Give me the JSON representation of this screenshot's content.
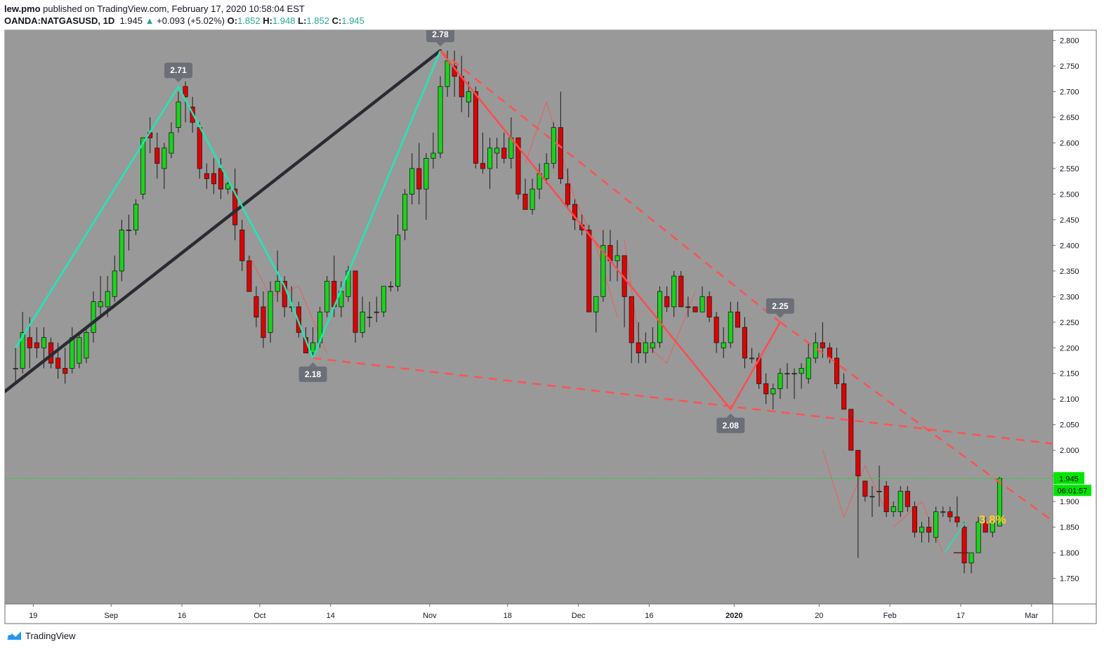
{
  "header": {
    "author": "lew.pmo",
    "published_text": "published on TradingView.com, February 17, 2020 10:58:04 EST",
    "symbol": "OANDA:NATGASUSD, 1D",
    "last": "1.945",
    "up_arrow": "▲",
    "change": "+0.093 (+5.02%)",
    "o_label": "O:",
    "o_value": "1.852",
    "h_label": "H:",
    "h_value": "1.948",
    "l_label": "L:",
    "l_value": "1.852",
    "c_label": "C:",
    "c_value": "1.945"
  },
  "footer": {
    "brand": "TradingView",
    "logo_icon": "tradingview-logo-icon"
  },
  "chart_data": {
    "type": "candlestick",
    "background": "#999999",
    "bull_color": "#1bd31b",
    "bear_color": "#e00000",
    "ylim": [
      1.7,
      2.82
    ],
    "x_range": [
      -1.5,
      146.5
    ],
    "y_ticks": [
      "2.800",
      "2.750",
      "2.700",
      "2.650",
      "2.600",
      "2.550",
      "2.500",
      "2.450",
      "2.400",
      "2.350",
      "2.300",
      "2.250",
      "2.200",
      "2.150",
      "2.100",
      "2.050",
      "2.000",
      "1.950",
      "1.900",
      "1.850",
      "1.800",
      "1.750"
    ],
    "x_ticks": [
      {
        "label": "19",
        "i": 2.5
      },
      {
        "label": "Sep",
        "i": 13.5
      },
      {
        "label": "16",
        "i": 23.5
      },
      {
        "label": "Oct",
        "i": 34.5
      },
      {
        "label": "14",
        "i": 44.5
      },
      {
        "label": "Nov",
        "i": 58.5
      },
      {
        "label": "18",
        "i": 69.5
      },
      {
        "label": "Dec",
        "i": 79.5
      },
      {
        "label": "16",
        "i": 89.5
      },
      {
        "label": "2020",
        "i": 101.5
      },
      {
        "label": "20",
        "i": 113.5
      },
      {
        "label": "Feb",
        "i": 123.5
      },
      {
        "label": "17",
        "i": 133.5
      },
      {
        "label": "Mar",
        "i": 143.5
      }
    ],
    "price_line": {
      "value": 1.945,
      "label": "1.945",
      "color": "#00e600"
    },
    "countdown": "06:01:57",
    "candles": [
      [
        2.16,
        2.2,
        2.13,
        2.16
      ],
      [
        2.16,
        2.27,
        2.15,
        2.23
      ],
      [
        2.22,
        2.26,
        2.16,
        2.2
      ],
      [
        2.21,
        2.24,
        2.18,
        2.2
      ],
      [
        2.2,
        2.24,
        2.16,
        2.22
      ],
      [
        2.21,
        2.22,
        2.16,
        2.17
      ],
      [
        2.18,
        2.21,
        2.14,
        2.16
      ],
      [
        2.16,
        2.2,
        2.13,
        2.15
      ],
      [
        2.16,
        2.24,
        2.15,
        2.22
      ],
      [
        2.17,
        2.23,
        2.16,
        2.22
      ],
      [
        2.18,
        2.24,
        2.17,
        2.23
      ],
      [
        2.23,
        2.31,
        2.21,
        2.29
      ],
      [
        2.28,
        2.34,
        2.26,
        2.29
      ],
      [
        2.28,
        2.34,
        2.26,
        2.31
      ],
      [
        2.3,
        2.38,
        2.29,
        2.35
      ],
      [
        2.35,
        2.45,
        2.33,
        2.43
      ],
      [
        2.43,
        2.46,
        2.39,
        2.43
      ],
      [
        2.43,
        2.49,
        2.42,
        2.48
      ],
      [
        2.5,
        2.61,
        2.49,
        2.61
      ],
      [
        2.62,
        2.65,
        2.58,
        2.61
      ],
      [
        2.59,
        2.62,
        2.53,
        2.56
      ],
      [
        2.55,
        2.6,
        2.51,
        2.59
      ],
      [
        2.58,
        2.64,
        2.57,
        2.62
      ],
      [
        2.63,
        2.7,
        2.62,
        2.68
      ],
      [
        2.71,
        2.72,
        2.64,
        2.69
      ],
      [
        2.67,
        2.69,
        2.62,
        2.64
      ],
      [
        2.63,
        2.64,
        2.53,
        2.55
      ],
      [
        2.54,
        2.56,
        2.51,
        2.53
      ],
      [
        2.54,
        2.57,
        2.5,
        2.52
      ],
      [
        2.55,
        2.57,
        2.49,
        2.51
      ],
      [
        2.51,
        2.53,
        2.5,
        2.52
      ],
      [
        2.51,
        2.55,
        2.41,
        2.44
      ],
      [
        2.43,
        2.45,
        2.35,
        2.37
      ],
      [
        2.37,
        2.38,
        2.31,
        2.31
      ],
      [
        2.3,
        2.32,
        2.24,
        2.26
      ],
      [
        2.28,
        2.31,
        2.2,
        2.22
      ],
      [
        2.23,
        2.33,
        2.21,
        2.31
      ],
      [
        2.31,
        2.39,
        2.29,
        2.33
      ],
      [
        2.33,
        2.34,
        2.26,
        2.28
      ],
      [
        2.28,
        2.32,
        2.27,
        2.28
      ],
      [
        2.28,
        2.29,
        2.22,
        2.23
      ],
      [
        2.22,
        2.24,
        2.19,
        2.19
      ],
      [
        2.19,
        2.24,
        2.18,
        2.21
      ],
      [
        2.21,
        2.28,
        2.2,
        2.27
      ],
      [
        2.27,
        2.34,
        2.26,
        2.33
      ],
      [
        2.33,
        2.38,
        2.26,
        2.28
      ],
      [
        2.28,
        2.33,
        2.26,
        2.31
      ],
      [
        2.3,
        2.36,
        2.29,
        2.35
      ],
      [
        2.35,
        2.35,
        2.21,
        2.23
      ],
      [
        2.23,
        2.3,
        2.22,
        2.27
      ],
      [
        2.26,
        2.29,
        2.24,
        2.26
      ],
      [
        2.27,
        2.3,
        2.25,
        2.27
      ],
      [
        2.27,
        2.32,
        2.26,
        2.32
      ],
      [
        2.32,
        2.33,
        2.31,
        2.32
      ],
      [
        2.32,
        2.46,
        2.31,
        2.42
      ],
      [
        2.43,
        2.51,
        2.41,
        2.5
      ],
      [
        2.5,
        2.58,
        2.48,
        2.55
      ],
      [
        2.55,
        2.6,
        2.48,
        2.51
      ],
      [
        2.51,
        2.58,
        2.45,
        2.57
      ],
      [
        2.57,
        2.62,
        2.55,
        2.58
      ],
      [
        2.58,
        2.73,
        2.57,
        2.71
      ],
      [
        2.71,
        2.78,
        2.69,
        2.76
      ],
      [
        2.75,
        2.78,
        2.69,
        2.73
      ],
      [
        2.73,
        2.77,
        2.66,
        2.69
      ],
      [
        2.68,
        2.72,
        2.65,
        2.7
      ],
      [
        2.7,
        2.71,
        2.55,
        2.56
      ],
      [
        2.56,
        2.62,
        2.54,
        2.55
      ],
      [
        2.55,
        2.61,
        2.51,
        2.59
      ],
      [
        2.58,
        2.61,
        2.55,
        2.59
      ],
      [
        2.59,
        2.62,
        2.56,
        2.57
      ],
      [
        2.57,
        2.65,
        2.55,
        2.61
      ],
      [
        2.61,
        2.61,
        2.49,
        2.5
      ],
      [
        2.5,
        2.53,
        2.47,
        2.47
      ],
      [
        2.47,
        2.53,
        2.46,
        2.51
      ],
      [
        2.51,
        2.56,
        2.49,
        2.54
      ],
      [
        2.53,
        2.58,
        2.52,
        2.56
      ],
      [
        2.56,
        2.64,
        2.55,
        2.63
      ],
      [
        2.63,
        2.7,
        2.52,
        2.53
      ],
      [
        2.52,
        2.55,
        2.47,
        2.48
      ],
      [
        2.48,
        2.49,
        2.43,
        2.45
      ],
      [
        2.44,
        2.46,
        2.42,
        2.43
      ],
      [
        2.43,
        2.44,
        2.27,
        2.27
      ],
      [
        2.27,
        2.3,
        2.23,
        2.3
      ],
      [
        2.3,
        2.43,
        2.29,
        2.4
      ],
      [
        2.4,
        2.43,
        2.33,
        2.37
      ],
      [
        2.37,
        2.41,
        2.33,
        2.38
      ],
      [
        2.38,
        2.38,
        2.24,
        2.3
      ],
      [
        2.3,
        2.3,
        2.17,
        2.21
      ],
      [
        2.21,
        2.25,
        2.17,
        2.19
      ],
      [
        2.19,
        2.23,
        2.17,
        2.21
      ],
      [
        2.2,
        2.24,
        2.19,
        2.21
      ],
      [
        2.21,
        2.32,
        2.2,
        2.31
      ],
      [
        2.3,
        2.32,
        2.27,
        2.28
      ],
      [
        2.28,
        2.35,
        2.26,
        2.34
      ],
      [
        2.34,
        2.35,
        2.28,
        2.28
      ],
      [
        2.28,
        2.3,
        2.26,
        2.28
      ],
      [
        2.28,
        2.28,
        2.27,
        2.27
      ],
      [
        2.27,
        2.32,
        2.27,
        2.3
      ],
      [
        2.3,
        2.31,
        2.25,
        2.26
      ],
      [
        2.26,
        2.27,
        2.19,
        2.21
      ],
      [
        2.2,
        2.24,
        2.18,
        2.21
      ],
      [
        2.21,
        2.29,
        2.2,
        2.27
      ],
      [
        2.27,
        2.29,
        2.24,
        2.24
      ],
      [
        2.24,
        2.26,
        2.16,
        2.18
      ],
      [
        2.18,
        2.2,
        2.17,
        2.18
      ],
      [
        2.18,
        2.19,
        2.12,
        2.13
      ],
      [
        2.13,
        2.15,
        2.09,
        2.11
      ],
      [
        2.11,
        2.13,
        2.08,
        2.12
      ],
      [
        2.12,
        2.16,
        2.1,
        2.15
      ],
      [
        2.15,
        2.17,
        2.12,
        2.15
      ],
      [
        2.15,
        2.16,
        2.1,
        2.15
      ],
      [
        2.15,
        2.17,
        2.12,
        2.16
      ],
      [
        2.14,
        2.21,
        2.13,
        2.18
      ],
      [
        2.18,
        2.23,
        2.17,
        2.21
      ],
      [
        2.21,
        2.25,
        2.18,
        2.2
      ],
      [
        2.2,
        2.21,
        2.17,
        2.18
      ],
      [
        2.18,
        2.2,
        2.12,
        2.13
      ],
      [
        2.13,
        2.15,
        2.08,
        2.08
      ],
      [
        2.08,
        2.08,
        2.0,
        2.0
      ],
      [
        2.0,
        2.0,
        1.79,
        1.95
      ],
      [
        1.94,
        1.94,
        1.9,
        1.91
      ],
      [
        1.91,
        1.93,
        1.87,
        1.91
      ],
      [
        1.92,
        1.97,
        1.89,
        1.92
      ],
      [
        1.93,
        1.94,
        1.87,
        1.88
      ],
      [
        1.88,
        1.9,
        1.87,
        1.89
      ],
      [
        1.88,
        1.93,
        1.87,
        1.92
      ],
      [
        1.92,
        1.93,
        1.88,
        1.89
      ],
      [
        1.89,
        1.9,
        1.83,
        1.84
      ],
      [
        1.84,
        1.86,
        1.82,
        1.85
      ],
      [
        1.85,
        1.87,
        1.82,
        1.84
      ],
      [
        1.83,
        1.89,
        1.82,
        1.88
      ],
      [
        1.88,
        1.89,
        1.87,
        1.88
      ],
      [
        1.88,
        1.89,
        1.86,
        1.87
      ],
      [
        1.87,
        1.91,
        1.85,
        1.86
      ],
      [
        1.85,
        1.86,
        1.76,
        1.78
      ],
      [
        1.78,
        1.8,
        1.76,
        1.8
      ],
      [
        1.8,
        1.87,
        1.8,
        1.86
      ],
      [
        1.86,
        1.87,
        1.84,
        1.84
      ],
      [
        1.84,
        1.86,
        1.83,
        1.86
      ],
      [
        1.852,
        1.948,
        1.852,
        1.945
      ]
    ],
    "pivot_labels": [
      {
        "text": "2.71",
        "i": 23,
        "y": 2.71,
        "pos": "above"
      },
      {
        "text": "2.78",
        "i": 60,
        "y": 2.78,
        "pos": "above"
      },
      {
        "text": "2.18",
        "i": 42,
        "y": 2.18,
        "pos": "below"
      },
      {
        "text": "2.25",
        "i": 108,
        "y": 2.25,
        "pos": "above"
      },
      {
        "text": "2.08",
        "i": 101,
        "y": 2.08,
        "pos": "below"
      }
    ],
    "green_zigzag": [
      [
        0,
        2.2
      ],
      [
        23,
        2.71
      ],
      [
        38,
        2.32
      ],
      [
        42,
        2.18
      ],
      [
        60,
        2.78
      ]
    ],
    "red_zigzag": [
      [
        60,
        2.78
      ],
      [
        101,
        2.08
      ],
      [
        108,
        2.25
      ]
    ],
    "black_line": [
      [
        -1.5,
        2.115
      ],
      [
        60,
        2.78
      ]
    ],
    "dashed_lines": [
      [
        [
          42,
          2.18
        ],
        [
          146.5,
          2.013
        ]
      ],
      [
        [
          60,
          2.78
        ],
        [
          108,
          2.25
        ]
      ],
      [
        [
          108,
          2.25
        ],
        [
          146.5,
          1.862
        ]
      ]
    ],
    "thin_red_lines": [
      [
        [
          33,
          2.38
        ],
        [
          36,
          2.3
        ],
        [
          40,
          2.32
        ],
        [
          44,
          2.19
        ]
      ],
      [
        [
          72,
          2.56
        ],
        [
          75,
          2.68
        ],
        [
          79,
          2.49
        ],
        [
          82,
          2.4
        ],
        [
          85,
          2.26
        ]
      ],
      [
        [
          86,
          2.41
        ],
        [
          88,
          2.22
        ],
        [
          92,
          2.17
        ],
        [
          96,
          2.31
        ]
      ],
      [
        [
          114,
          2.0
        ],
        [
          117,
          1.87
        ],
        [
          120,
          1.97
        ],
        [
          123,
          1.88
        ]
      ],
      [
        [
          124,
          1.85
        ],
        [
          128,
          1.9
        ],
        [
          131,
          1.8
        ]
      ]
    ],
    "green_hook": [
      [
        131.2,
        1.8
      ],
      [
        134.2,
        1.86
      ]
    ],
    "red_hook": [
      [
        132.5,
        1.8
      ],
      [
        134.6,
        1.8
      ]
    ],
    "annotation": {
      "text": "3.8%",
      "i": 138,
      "y": 1.857,
      "color": "#ffd21f"
    }
  }
}
